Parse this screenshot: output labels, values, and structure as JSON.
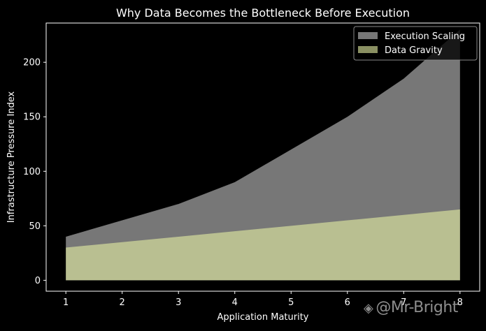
{
  "chart_data": {
    "type": "area",
    "title": "Why Data Becomes the Bottleneck Before Execution",
    "xlabel": "Application Maturity",
    "ylabel": "Infrastructure Pressure Index",
    "x": [
      1,
      2,
      3,
      4,
      5,
      6,
      7,
      8
    ],
    "xlim": [
      0.65,
      8.35
    ],
    "ylim": [
      -10,
      236
    ],
    "xticks": [
      1,
      2,
      3,
      4,
      5,
      6,
      7,
      8
    ],
    "yticks": [
      0,
      50,
      100,
      150,
      200
    ],
    "grid": false,
    "legend_position": "top-right",
    "series": [
      {
        "name": "Execution Scaling",
        "values": [
          40,
          55,
          70,
          90,
          120,
          150,
          185,
          230
        ],
        "color": "#a9a9a9"
      },
      {
        "name": "Data Gravity",
        "values": [
          30,
          35,
          40,
          45,
          50,
          55,
          60,
          65
        ],
        "color": "#e6f0a3"
      }
    ],
    "background": "#000000",
    "text_color": "#ffffff"
  },
  "watermark": {
    "text": "@Mr-Bright"
  }
}
